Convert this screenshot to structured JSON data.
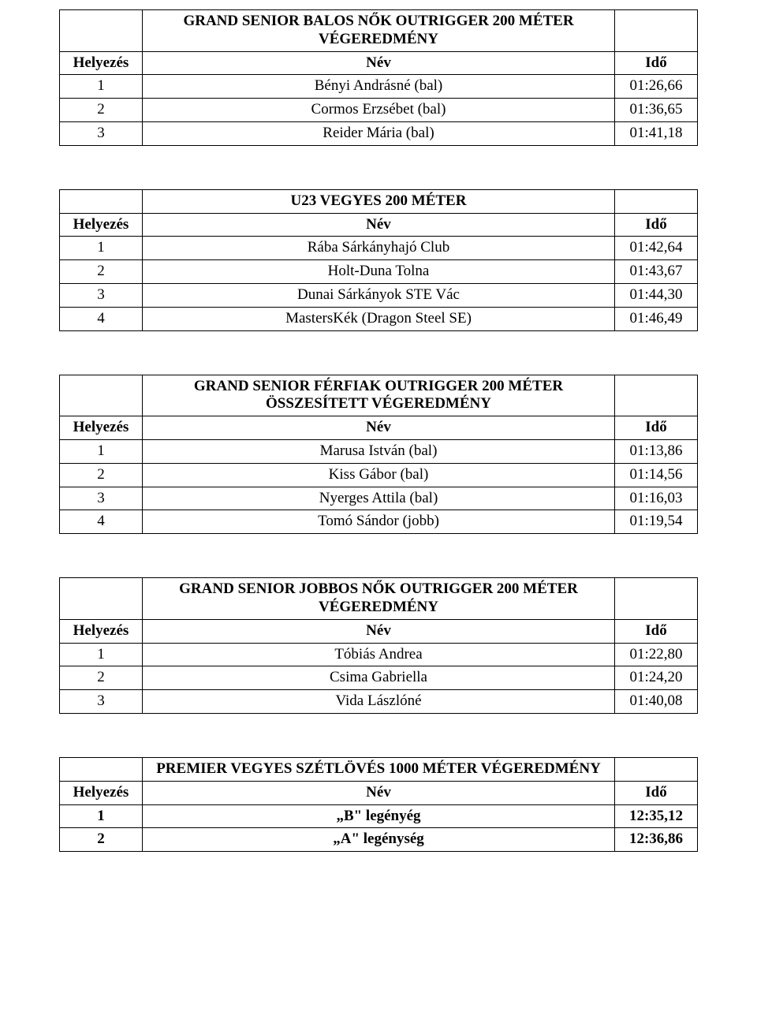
{
  "headers": {
    "rank": "Helyezés",
    "name": "Név",
    "time": "Idő"
  },
  "tables": [
    {
      "title": "GRAND SENIOR BALOS NŐK OUTRIGGER  200 MÉTER VÉGEREDMÉNY",
      "rows": [
        {
          "rank": "1",
          "name": "Bényi Andrásné (bal)",
          "time": "01:26,66"
        },
        {
          "rank": "2",
          "name": "Cormos Erzsébet  (bal)",
          "time": "01:36,65"
        },
        {
          "rank": "3",
          "name": "Reider Mária (bal)",
          "time": "01:41,18"
        }
      ]
    },
    {
      "title": "U23 VEGYES 200 MÉTER",
      "rows": [
        {
          "rank": "1",
          "name": "Rába Sárkányhajó Club",
          "time": "01:42,64"
        },
        {
          "rank": "2",
          "name": "Holt-Duna Tolna",
          "time": "01:43,67"
        },
        {
          "rank": "3",
          "name": "Dunai Sárkányok STE Vác",
          "time": "01:44,30"
        },
        {
          "rank": "4",
          "name": "MastersKék (Dragon Steel SE)",
          "time": "01:46,49"
        }
      ]
    },
    {
      "title": "GRAND SENIOR FÉRFIAK OUTRIGGER 200 MÉTER ÖSSZESÍTETT VÉGEREDMÉNY",
      "rows": [
        {
          "rank": "1",
          "name": "Marusa István (bal)",
          "time": "01:13,86"
        },
        {
          "rank": "2",
          "name": "Kiss Gábor (bal)",
          "time": "01:14,56"
        },
        {
          "rank": "3",
          "name": "Nyerges Attila (bal)",
          "time": "01:16,03"
        },
        {
          "rank": "4",
          "name": "Tomó Sándor (jobb)",
          "time": "01:19,54"
        }
      ]
    },
    {
      "title": "GRAND SENIOR JOBBOS NŐK OUTRIGGER  200 MÉTER VÉGEREDMÉNY",
      "rows": [
        {
          "rank": "1",
          "name": "Tóbiás Andrea",
          "time": "01:22,80"
        },
        {
          "rank": "2",
          "name": "Csima Gabriella",
          "time": "01:24,20"
        },
        {
          "rank": "3",
          "name": "Vida Lászlóné",
          "time": "01:40,08"
        }
      ]
    },
    {
      "title": "PREMIER VEGYES SZÉTLÖVÉS 1000 MÉTER VÉGEREDMÉNY",
      "bold_rows": true,
      "rows": [
        {
          "rank": "1",
          "name": "„B\" legényég",
          "time": "12:35,12"
        },
        {
          "rank": "2",
          "name": "„A\" legénység",
          "time": "12:36,86"
        }
      ]
    }
  ],
  "style": {
    "font_family": "Times New Roman",
    "font_size_pt": 14,
    "border_color": "#000000",
    "background_color": "#ffffff",
    "text_color": "#000000"
  }
}
